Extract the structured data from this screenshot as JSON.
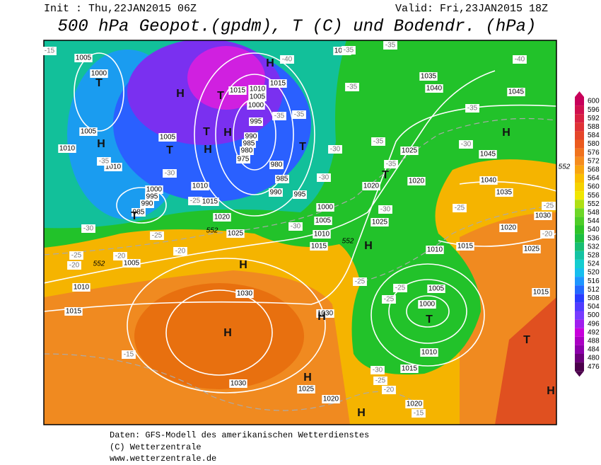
{
  "header": {
    "init": "Init : Thu,22JAN2015 06Z",
    "valid": "Valid: Fri,23JAN2015 18Z",
    "title": "500 hPa Geopot.(gpdm), T (C) und Bodendr. (hPa)"
  },
  "colorbar": {
    "ticks": [
      600,
      596,
      592,
      588,
      584,
      580,
      576,
      572,
      568,
      564,
      560,
      556,
      552,
      548,
      544,
      540,
      536,
      532,
      528,
      524,
      520,
      516,
      512,
      508,
      504,
      500,
      496,
      492,
      488,
      484,
      480,
      476
    ]
  },
  "map": {
    "pressure_labels": [
      1005,
      1000,
      1005,
      1010,
      1010,
      1005,
      1000,
      995,
      990,
      985,
      1010,
      1015,
      1020,
      1025,
      1015,
      1010,
      1005,
      1000,
      995,
      990,
      985,
      980,
      975,
      980,
      985,
      990,
      995,
      1000,
      1005,
      1010,
      1015,
      1005,
      1035,
      1040,
      1045,
      1045,
      1040,
      1035,
      1030,
      1020,
      1025,
      1015,
      1010,
      1025,
      1020,
      1020,
      1025,
      1005,
      1000,
      1010,
      1015,
      1015,
      1010,
      1015,
      1005,
      1030,
      1030,
      1030,
      1025,
      1020,
      1020,
      1015
    ],
    "temperature_labels": [
      -40,
      -35,
      -35,
      -40,
      -35,
      -35,
      -35,
      -35,
      -30,
      -30,
      -25,
      -30,
      -35,
      -35,
      -30,
      -25,
      -25,
      -20,
      -30,
      -35,
      -30,
      -25,
      -20,
      -25,
      -20,
      -20,
      -25,
      -25,
      -25,
      -30,
      -25,
      -20,
      -15,
      -15,
      -30,
      -15
    ],
    "centers": [
      "H",
      "T",
      "T",
      "H",
      "T",
      "H",
      "T",
      "H",
      "H",
      "T",
      "T",
      "H",
      "H",
      "H",
      "H",
      "H",
      "T",
      "T",
      "H",
      "H",
      "H",
      "T"
    ],
    "geopotential_labels": [
      552,
      552,
      552,
      552
    ]
  },
  "footer": {
    "line1": "Daten: GFS-Modell des amerikanischen Wetterdienstes",
    "line2": "(C) Wetterzentrale",
    "line3": "www.wetterzentrale.de"
  }
}
